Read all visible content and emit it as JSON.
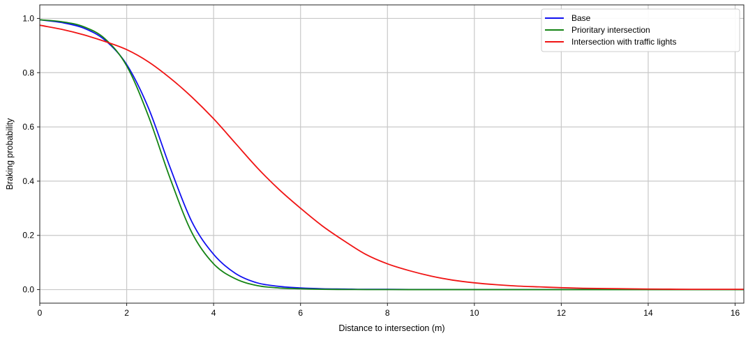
{
  "chart_data": {
    "type": "line",
    "title": "",
    "xlabel": "Distance to intersection (m)",
    "ylabel": "Braking probability",
    "xlim": [
      0,
      16.2
    ],
    "ylim": [
      -0.05,
      1.05
    ],
    "xticks": [
      0,
      2,
      4,
      6,
      8,
      10,
      12,
      14,
      16
    ],
    "yticks": [
      0.0,
      0.2,
      0.4,
      0.6,
      0.8,
      1.0
    ],
    "xtick_labels": [
      "0",
      "2",
      "4",
      "6",
      "8",
      "10",
      "12",
      "14",
      "16"
    ],
    "ytick_labels": [
      "0.0",
      "0.2",
      "0.4",
      "0.6",
      "0.8",
      "1.0"
    ],
    "grid": true,
    "legend_position": "top-right",
    "x": [
      0,
      0.5,
      1,
      1.5,
      2,
      2.5,
      3,
      3.5,
      4,
      4.5,
      5,
      5.5,
      6,
      6.5,
      7,
      7.5,
      8,
      8.5,
      9,
      9.5,
      10,
      10.5,
      11,
      11.5,
      12,
      12.5,
      13,
      13.5,
      14,
      14.5,
      15,
      15.5,
      16,
      16.2
    ],
    "series": [
      {
        "name": "Base",
        "color": "#1010f0",
        "values": [
          0.995,
          0.985,
          0.965,
          0.92,
          0.83,
          0.67,
          0.45,
          0.25,
          0.13,
          0.06,
          0.025,
          0.012,
          0.006,
          0.003,
          0.002,
          0.001,
          0.001,
          0.0005,
          0.0003,
          0.0002,
          0.0001,
          0,
          0,
          0,
          0,
          0,
          0,
          0,
          0,
          0,
          0,
          0,
          0,
          0
        ]
      },
      {
        "name": "Prioritary intersection",
        "color": "#148414",
        "values": [
          0.995,
          0.988,
          0.97,
          0.925,
          0.825,
          0.64,
          0.41,
          0.21,
          0.095,
          0.04,
          0.015,
          0.006,
          0.003,
          0.001,
          0.0005,
          0.0002,
          0.0001,
          0,
          0,
          0,
          0,
          0,
          0,
          0,
          0,
          0,
          0,
          0,
          0,
          0,
          0,
          0,
          0,
          0
        ]
      },
      {
        "name": "Intersection with traffic lights",
        "color": "#f01414",
        "values": [
          0.975,
          0.96,
          0.94,
          0.915,
          0.885,
          0.84,
          0.78,
          0.71,
          0.63,
          0.54,
          0.45,
          0.37,
          0.3,
          0.235,
          0.18,
          0.13,
          0.095,
          0.07,
          0.05,
          0.035,
          0.025,
          0.018,
          0.013,
          0.01,
          0.007,
          0.005,
          0.004,
          0.003,
          0.002,
          0.0015,
          0.001,
          0.001,
          0.001,
          0.001
        ]
      }
    ]
  }
}
